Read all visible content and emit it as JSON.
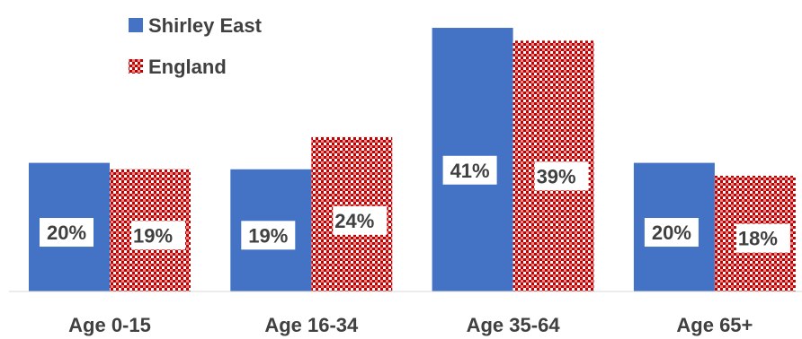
{
  "chart_data": {
    "type": "bar",
    "categories": [
      "Age 0-15",
      "Age 16-34",
      "Age 35-64",
      "Age 65+"
    ],
    "series": [
      {
        "name": "Shirley East",
        "values": [
          20,
          19,
          41,
          20
        ],
        "labels": [
          "20%",
          "19%",
          "41%",
          "20%"
        ],
        "color": "#4472c4",
        "fill": "solid"
      },
      {
        "name": "England",
        "values": [
          19,
          24,
          39,
          18
        ],
        "labels": [
          "19%",
          "24%",
          "39%",
          "18%"
        ],
        "color": "#c00000",
        "fill": "checker-pattern"
      }
    ],
    "ylim": [
      0,
      45
    ],
    "grid": false,
    "legend": "top-left",
    "title": "",
    "xlabel": "",
    "ylabel": ""
  }
}
